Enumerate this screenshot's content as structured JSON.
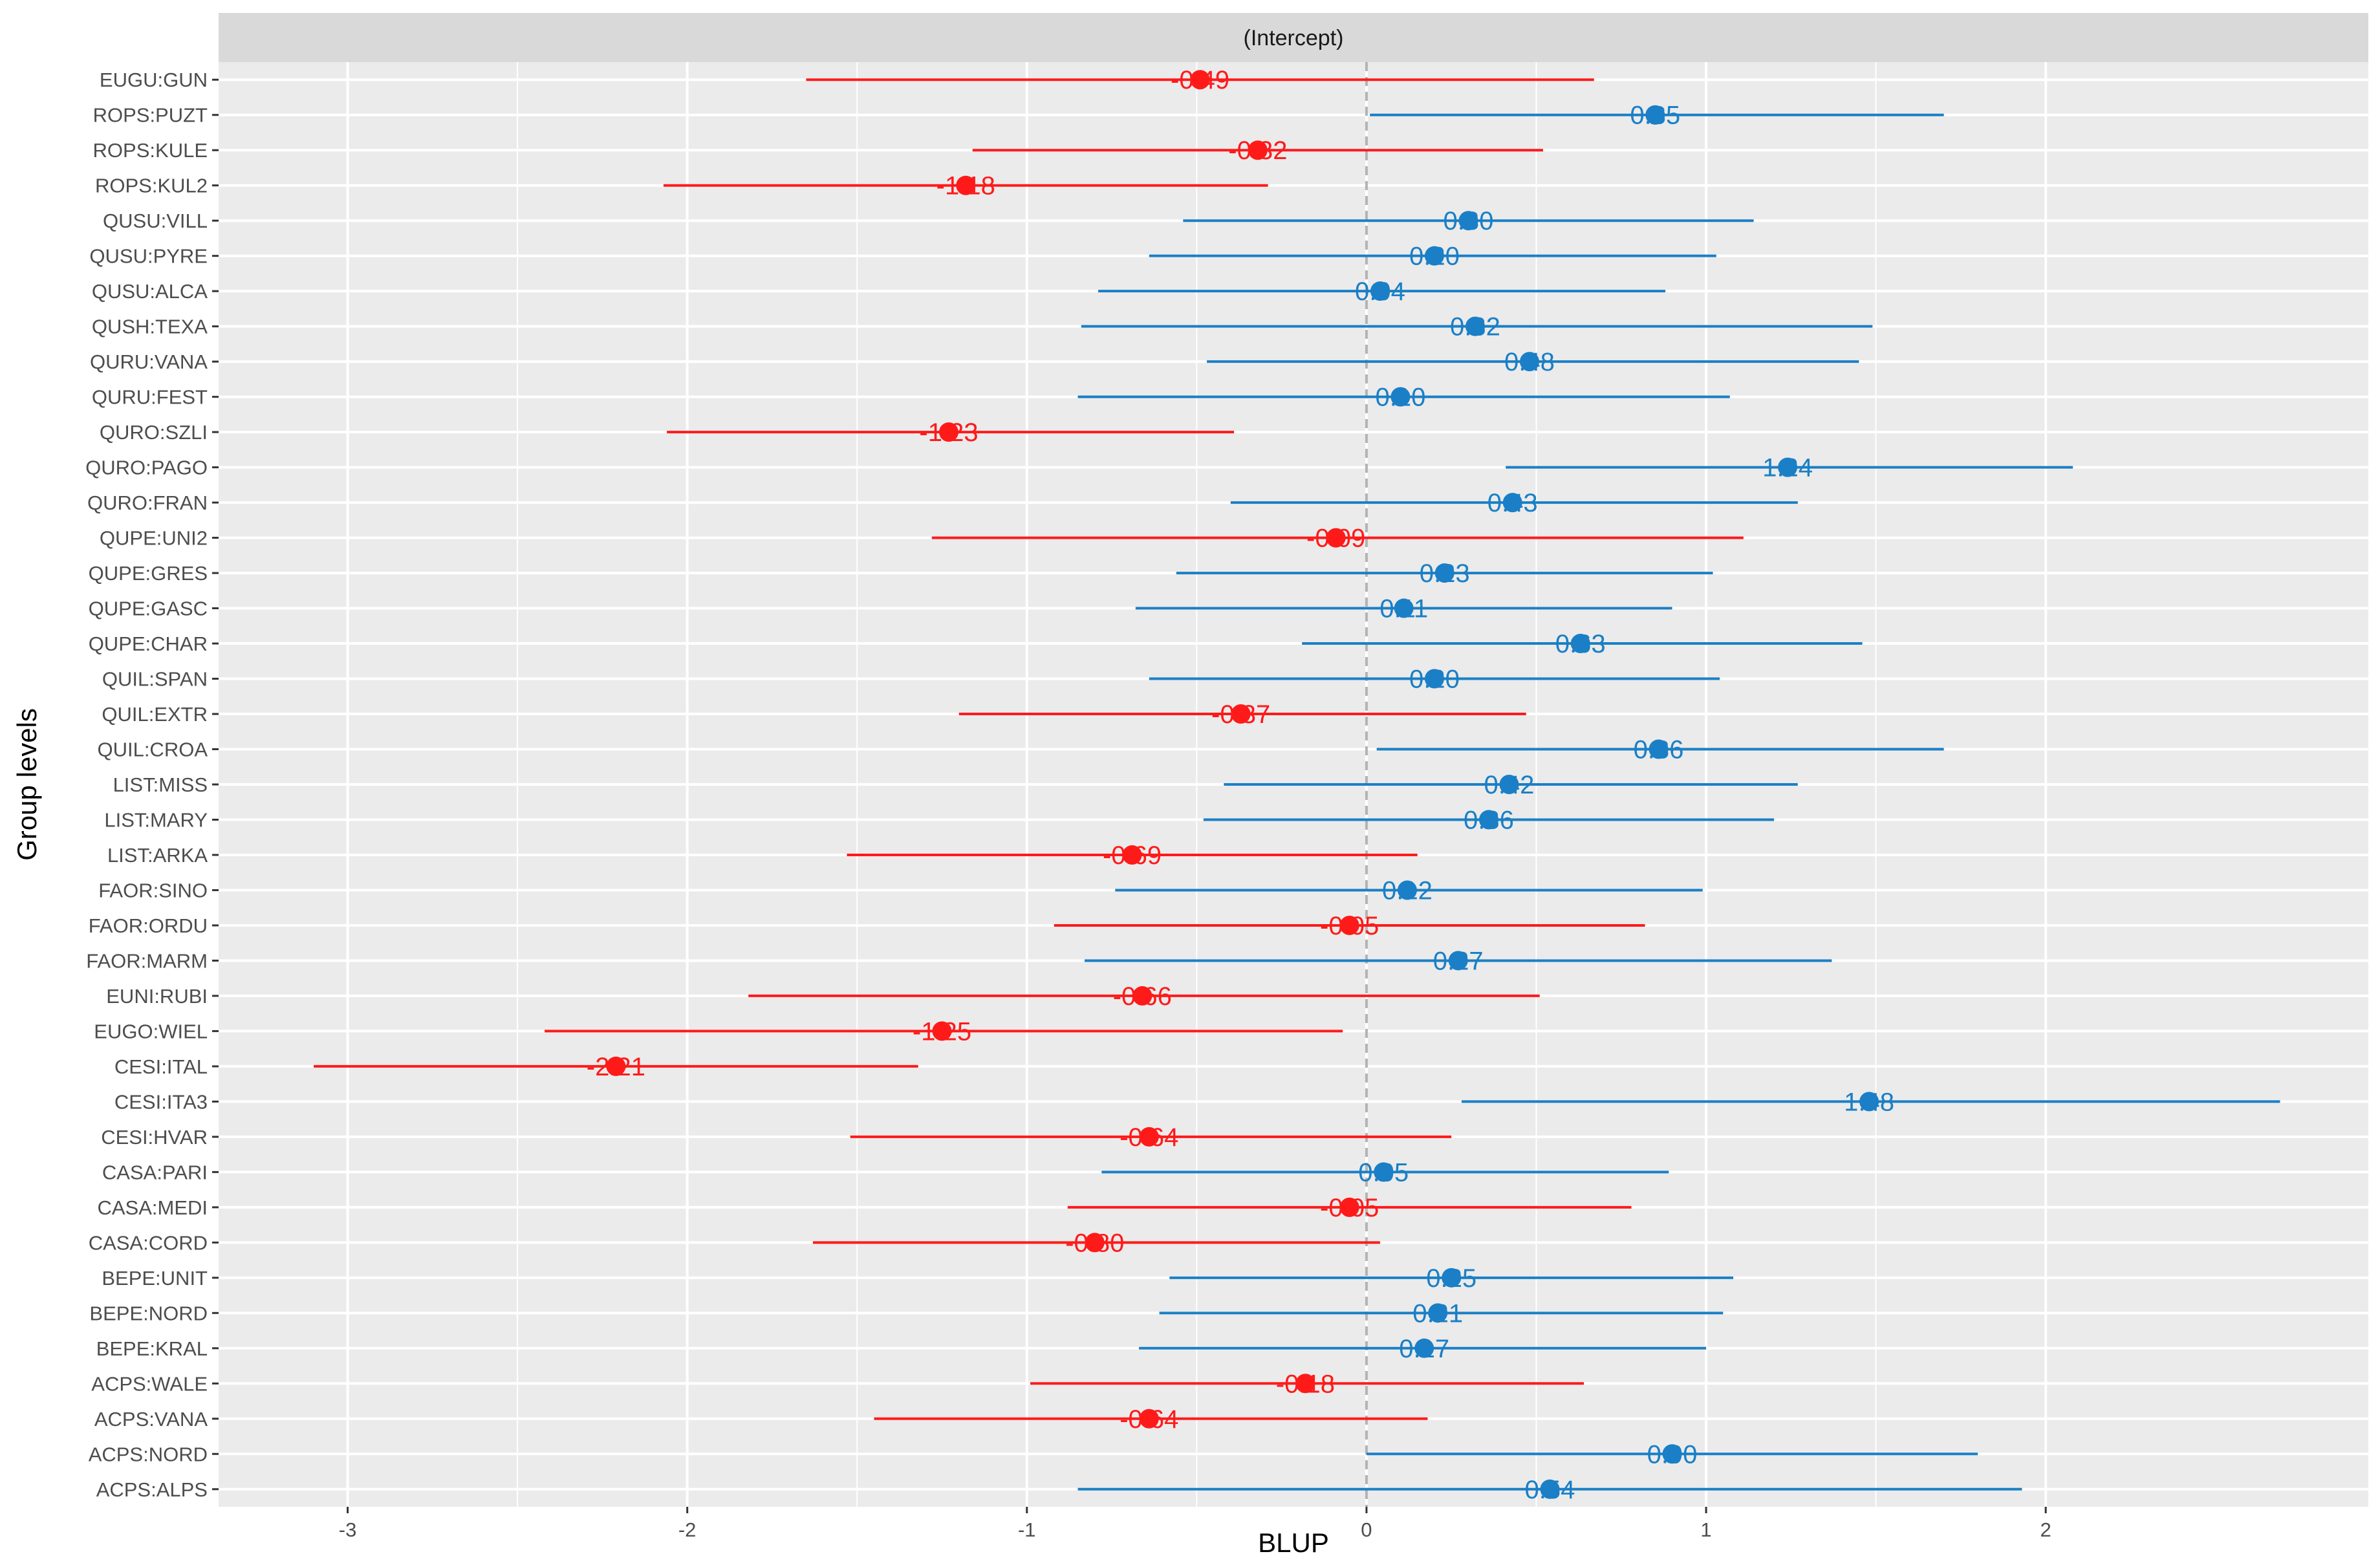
{
  "chart_data": {
    "type": "forest",
    "title": "",
    "facet_label": "(Intercept)",
    "xlabel": "BLUP",
    "ylabel": "Group levels",
    "xlim": [
      -3.38,
      2.95
    ],
    "x_ticks": [
      -3,
      -2,
      -1,
      0,
      1,
      2
    ],
    "x_tick_labels": [
      "-3",
      "-2",
      "-1",
      "0",
      "1",
      "2"
    ],
    "reference_line": 0,
    "grid": true,
    "colors": {
      "positive": "#1a7fc6",
      "negative": "#ff1a1a",
      "panel": "#ebebeb",
      "strip": "#d9d9d9",
      "gridline": "#ffffff",
      "refline": "#b3b3b3"
    },
    "points": [
      {
        "group": "EUGU:GUN",
        "value": -0.49,
        "lower": -1.65,
        "upper": 0.67,
        "label": "-0.49"
      },
      {
        "group": "ROPS:PUZT",
        "value": 0.85,
        "lower": 0.01,
        "upper": 1.7,
        "label": "0.85"
      },
      {
        "group": "ROPS:KULE",
        "value": -0.32,
        "lower": -1.16,
        "upper": 0.52,
        "label": "-0.32"
      },
      {
        "group": "ROPS:KUL2",
        "value": -1.18,
        "lower": -2.07,
        "upper": -0.29,
        "label": "-1.18"
      },
      {
        "group": "QUSU:VILL",
        "value": 0.3,
        "lower": -0.54,
        "upper": 1.14,
        "label": "0.30"
      },
      {
        "group": "QUSU:PYRE",
        "value": 0.2,
        "lower": -0.64,
        "upper": 1.03,
        "label": "0.20"
      },
      {
        "group": "QUSU:ALCA",
        "value": 0.04,
        "lower": -0.79,
        "upper": 0.88,
        "label": "0.04"
      },
      {
        "group": "QUSH:TEXA",
        "value": 0.32,
        "lower": -0.84,
        "upper": 1.49,
        "label": "0.32"
      },
      {
        "group": "QURU:VANA",
        "value": 0.48,
        "lower": -0.47,
        "upper": 1.45,
        "label": "0.48"
      },
      {
        "group": "QURU:FEST",
        "value": 0.1,
        "lower": -0.85,
        "upper": 1.07,
        "label": "0.10"
      },
      {
        "group": "QURO:SZLI",
        "value": -1.23,
        "lower": -2.06,
        "upper": -0.39,
        "label": "-1.23"
      },
      {
        "group": "QURO:PAGO",
        "value": 1.24,
        "lower": 0.41,
        "upper": 2.08,
        "label": "1.24"
      },
      {
        "group": "QURO:FRAN",
        "value": 0.43,
        "lower": -0.4,
        "upper": 1.27,
        "label": "0.43"
      },
      {
        "group": "QUPE:UNI2",
        "value": -0.09,
        "lower": -1.28,
        "upper": 1.11,
        "label": "-0.09"
      },
      {
        "group": "QUPE:GRES",
        "value": 0.23,
        "lower": -0.56,
        "upper": 1.02,
        "label": "0.23"
      },
      {
        "group": "QUPE:GASC",
        "value": 0.11,
        "lower": -0.68,
        "upper": 0.9,
        "label": "0.11"
      },
      {
        "group": "QUPE:CHAR",
        "value": 0.63,
        "lower": -0.19,
        "upper": 1.46,
        "label": "0.63"
      },
      {
        "group": "QUIL:SPAN",
        "value": 0.2,
        "lower": -0.64,
        "upper": 1.04,
        "label": "0.20"
      },
      {
        "group": "QUIL:EXTR",
        "value": -0.37,
        "lower": -1.2,
        "upper": 0.47,
        "label": "-0.37"
      },
      {
        "group": "QUIL:CROA",
        "value": 0.86,
        "lower": 0.03,
        "upper": 1.7,
        "label": "0.86"
      },
      {
        "group": "LIST:MISS",
        "value": 0.42,
        "lower": -0.42,
        "upper": 1.27,
        "label": "0.42"
      },
      {
        "group": "LIST:MARY",
        "value": 0.36,
        "lower": -0.48,
        "upper": 1.2,
        "label": "0.36"
      },
      {
        "group": "LIST:ARKA",
        "value": -0.69,
        "lower": -1.53,
        "upper": 0.15,
        "label": "-0.69"
      },
      {
        "group": "FAOR:SINO",
        "value": 0.12,
        "lower": -0.74,
        "upper": 0.99,
        "label": "0.12"
      },
      {
        "group": "FAOR:ORDU",
        "value": -0.05,
        "lower": -0.92,
        "upper": 0.82,
        "label": "-0.05"
      },
      {
        "group": "FAOR:MARM",
        "value": 0.27,
        "lower": -0.83,
        "upper": 1.37,
        "label": "0.27"
      },
      {
        "group": "EUNI:RUBI",
        "value": -0.66,
        "lower": -1.82,
        "upper": 0.51,
        "label": "-0.66"
      },
      {
        "group": "EUGO:WIEL",
        "value": -1.25,
        "lower": -2.42,
        "upper": -0.07,
        "label": "-1.25"
      },
      {
        "group": "CESI:ITAL",
        "value": -2.21,
        "lower": -3.1,
        "upper": -1.32,
        "label": "-2.21"
      },
      {
        "group": "CESI:ITA3",
        "value": 1.48,
        "lower": 0.28,
        "upper": 2.69,
        "label": "1.48"
      },
      {
        "group": "CESI:HVAR",
        "value": -0.64,
        "lower": -1.52,
        "upper": 0.25,
        "label": "-0.64"
      },
      {
        "group": "CASA:PARI",
        "value": 0.05,
        "lower": -0.78,
        "upper": 0.89,
        "label": "0.05"
      },
      {
        "group": "CASA:MEDI",
        "value": -0.05,
        "lower": -0.88,
        "upper": 0.78,
        "label": "-0.05"
      },
      {
        "group": "CASA:CORD",
        "value": -0.8,
        "lower": -1.63,
        "upper": 0.04,
        "label": "-0.80"
      },
      {
        "group": "BEPE:UNIT",
        "value": 0.25,
        "lower": -0.58,
        "upper": 1.08,
        "label": "0.25"
      },
      {
        "group": "BEPE:NORD",
        "value": 0.21,
        "lower": -0.61,
        "upper": 1.05,
        "label": "0.21"
      },
      {
        "group": "BEPE:KRAL",
        "value": 0.17,
        "lower": -0.67,
        "upper": 1.0,
        "label": "0.17"
      },
      {
        "group": "ACPS:WALE",
        "value": -0.18,
        "lower": -0.99,
        "upper": 0.64,
        "label": "-0.18"
      },
      {
        "group": "ACPS:VANA",
        "value": -0.64,
        "lower": -1.45,
        "upper": 0.18,
        "label": "-0.64"
      },
      {
        "group": "ACPS:NORD",
        "value": 0.9,
        "lower": 0.0,
        "upper": 1.8,
        "label": "0.90"
      },
      {
        "group": "ACPS:ALPS",
        "value": 0.54,
        "lower": -0.85,
        "upper": 1.93,
        "label": "0.54"
      }
    ]
  }
}
